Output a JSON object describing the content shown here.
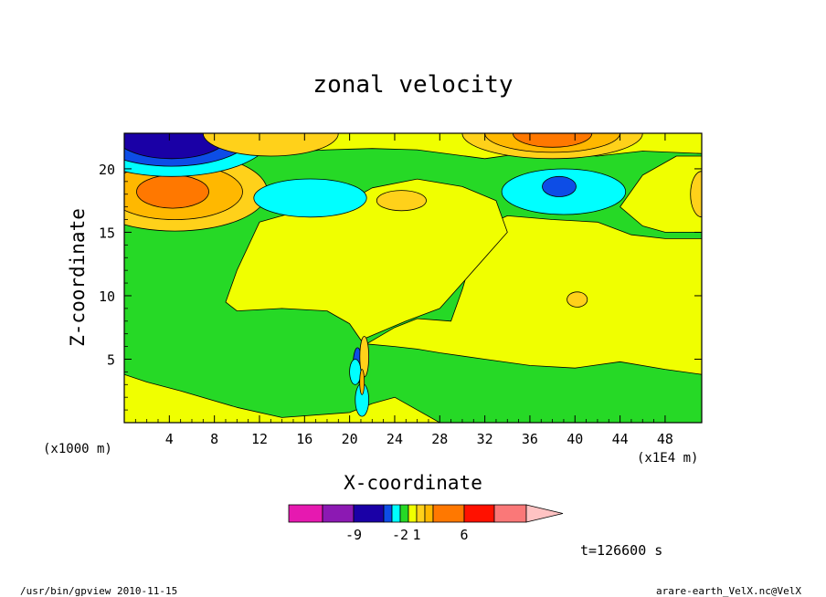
{
  "footer": {
    "left": "/usr/bin/gpview   2010-11-15",
    "right": "arare-earth_VelX.nc@VelX"
  },
  "chart_data": {
    "type": "heatmap",
    "title": "zonal velocity",
    "xlabel": "X-coordinate",
    "ylabel": "Z-coordinate",
    "x_unit": "(x1E4 m)",
    "y_unit": "(x1000 m)",
    "x_ticks": [
      4,
      8,
      12,
      16,
      20,
      24,
      28,
      32,
      36,
      40,
      44,
      48
    ],
    "y_ticks": [
      5,
      10,
      15,
      20
    ],
    "xlim": [
      0,
      51.25
    ],
    "ylim": [
      0,
      22.8
    ],
    "time_label": "t=126600 s",
    "colorbar": {
      "colors": [
        "#e619b0",
        "#8c19b3",
        "#1a00a6",
        "#0d4de6",
        "#00ffff",
        "#26d926",
        "#f0ff00",
        "#ffd11a",
        "#ffb800",
        "#ff7800",
        "#ff1100",
        "#fa7878",
        "#ffc3c3"
      ],
      "tick_labels": [
        "-9",
        "-2",
        "1",
        "6"
      ],
      "tick_at_boundary": [
        2,
        5,
        7,
        10
      ],
      "extend": "max"
    },
    "field_colors": {
      "strong_neg": "#1a00a6",
      "mid_neg": "#0d4de6",
      "weak_neg": "#00ffff",
      "near_zero": "#26d926",
      "weak_pos": "#f0ff00",
      "mid_pos": "#ffd11a",
      "pos2": "#ffb800",
      "strong_pos": "#ff7800"
    },
    "regions": [
      {
        "name": "lower-yellow",
        "level": "weak_pos",
        "points": [
          [
            0,
            3.8
          ],
          [
            2,
            3.2
          ],
          [
            5,
            2.5
          ],
          [
            10,
            1.2
          ],
          [
            14,
            0.4
          ],
          [
            20,
            0.8
          ],
          [
            22,
            1.5
          ],
          [
            24,
            2.0
          ],
          [
            28,
            0
          ],
          [
            0,
            0
          ]
        ]
      },
      {
        "name": "upper-yellow-band",
        "level": "weak_pos",
        "points": [
          [
            0,
            21.2
          ],
          [
            6,
            20.8
          ],
          [
            12,
            21.2
          ],
          [
            18,
            21.5
          ],
          [
            22,
            21.6
          ],
          [
            26,
            21.5
          ],
          [
            32,
            20.8
          ],
          [
            36,
            21.3
          ],
          [
            42,
            21.0
          ],
          [
            46,
            21.4
          ],
          [
            51.25,
            21.2
          ],
          [
            51.25,
            22.8
          ],
          [
            0,
            22.8
          ]
        ]
      },
      {
        "name": "right-yellow",
        "level": "weak_pos",
        "points": [
          [
            21.5,
            6.2
          ],
          [
            24,
            7.5
          ],
          [
            26,
            8.2
          ],
          [
            29,
            8.0
          ],
          [
            30,
            10.5
          ],
          [
            31,
            13.5
          ],
          [
            32,
            15.5
          ],
          [
            34,
            16.3
          ],
          [
            38,
            16.0
          ],
          [
            42,
            15.8
          ],
          [
            45,
            14.8
          ],
          [
            48,
            14.5
          ],
          [
            51.25,
            14.5
          ],
          [
            51.25,
            3.8
          ],
          [
            48,
            4.2
          ],
          [
            44,
            4.8
          ],
          [
            40,
            4.3
          ],
          [
            36,
            4.5
          ],
          [
            32,
            5.0
          ],
          [
            28,
            5.5
          ],
          [
            26,
            5.8
          ],
          [
            24,
            6.0
          ]
        ]
      },
      {
        "name": "mid-yellow-plume",
        "level": "weak_pos",
        "points": [
          [
            21,
            6.5
          ],
          [
            20,
            7.8
          ],
          [
            18,
            8.8
          ],
          [
            14,
            9.0
          ],
          [
            10,
            8.8
          ],
          [
            9,
            9.5
          ],
          [
            10,
            12.0
          ],
          [
            12,
            15.8
          ],
          [
            16,
            16.8
          ],
          [
            20,
            17.5
          ],
          [
            22,
            18.5
          ],
          [
            26,
            19.2
          ],
          [
            30,
            18.6
          ],
          [
            33,
            17.5
          ],
          [
            34,
            15.0
          ],
          [
            32,
            13.0
          ],
          [
            30,
            11.0
          ],
          [
            28,
            9.0
          ],
          [
            25,
            8.0
          ]
        ]
      },
      {
        "name": "right-edge-yellow",
        "level": "weak_pos",
        "points": [
          [
            44,
            17.0
          ],
          [
            46,
            15.5
          ],
          [
            48,
            15.0
          ],
          [
            51.25,
            15.0
          ],
          [
            51.25,
            21.0
          ],
          [
            49,
            21.0
          ],
          [
            46,
            19.5
          ]
        ]
      },
      {
        "name": "left-orange-ring1",
        "level": "mid_pos",
        "ellipse": [
          4.5,
          18.2,
          8.2,
          3.1
        ]
      },
      {
        "name": "left-orange-ring2",
        "level": "pos2",
        "ellipse": [
          4.5,
          18.2,
          6.0,
          2.2
        ]
      },
      {
        "name": "left-orange-core",
        "level": "strong_pos",
        "ellipse": [
          4.3,
          18.2,
          3.2,
          1.3
        ]
      },
      {
        "name": "top-left-cyan",
        "level": "weak_neg",
        "ellipse": [
          4.2,
          22.8,
          9.0,
          3.4
        ]
      },
      {
        "name": "top-left-blue",
        "level": "mid_neg",
        "ellipse": [
          4.2,
          22.8,
          7.2,
          2.6
        ]
      },
      {
        "name": "top-left-navy",
        "level": "strong_neg",
        "ellipse": [
          4.2,
          22.8,
          5.2,
          2.0
        ]
      },
      {
        "name": "top-yellow-orange-mid",
        "level": "mid_pos",
        "ellipse": [
          13.0,
          22.8,
          6.0,
          1.8
        ]
      },
      {
        "name": "top-orange-right1",
        "level": "mid_pos",
        "ellipse": [
          38.0,
          22.8,
          8.0,
          2.0
        ]
      },
      {
        "name": "top-orange-right2",
        "level": "pos2",
        "ellipse": [
          38.0,
          22.8,
          6.0,
          1.5
        ]
      },
      {
        "name": "top-orange-right3",
        "level": "strong_pos",
        "ellipse": [
          38.0,
          22.8,
          3.5,
          1.1
        ]
      },
      {
        "name": "cyan-left",
        "level": "weak_neg",
        "ellipse": [
          16.5,
          17.7,
          5.0,
          1.5
        ]
      },
      {
        "name": "cyan-right",
        "level": "weak_neg",
        "ellipse": [
          39.0,
          18.2,
          5.5,
          1.8
        ]
      },
      {
        "name": "blue-right",
        "level": "mid_neg",
        "ellipse": [
          38.6,
          18.6,
          1.5,
          0.8
        ]
      },
      {
        "name": "mid-orange-blob",
        "level": "mid_pos",
        "ellipse": [
          24.6,
          17.5,
          2.2,
          0.8
        ]
      },
      {
        "name": "small-yellow-dot",
        "level": "mid_pos",
        "ellipse": [
          40.2,
          9.7,
          0.9,
          0.6
        ]
      },
      {
        "name": "right-edge-orange",
        "level": "mid_pos",
        "ellipse": [
          51.25,
          18.0,
          1.0,
          1.8
        ]
      },
      {
        "name": "jet-cyan-lower",
        "level": "weak_neg",
        "ellipse": [
          21.1,
          1.8,
          0.6,
          1.3
        ]
      },
      {
        "name": "jet-blue",
        "level": "mid_neg",
        "ellipse": [
          20.7,
          4.5,
          0.4,
          1.4
        ]
      },
      {
        "name": "jet-cyan-upper",
        "level": "weak_neg",
        "ellipse": [
          20.5,
          4.0,
          0.5,
          1.0
        ]
      },
      {
        "name": "jet-yellow",
        "level": "mid_pos",
        "ellipse": [
          21.3,
          5.2,
          0.4,
          1.6
        ]
      },
      {
        "name": "jet-orange",
        "level": "pos2",
        "ellipse": [
          21.1,
          3.2,
          0.2,
          1.0
        ]
      }
    ]
  }
}
